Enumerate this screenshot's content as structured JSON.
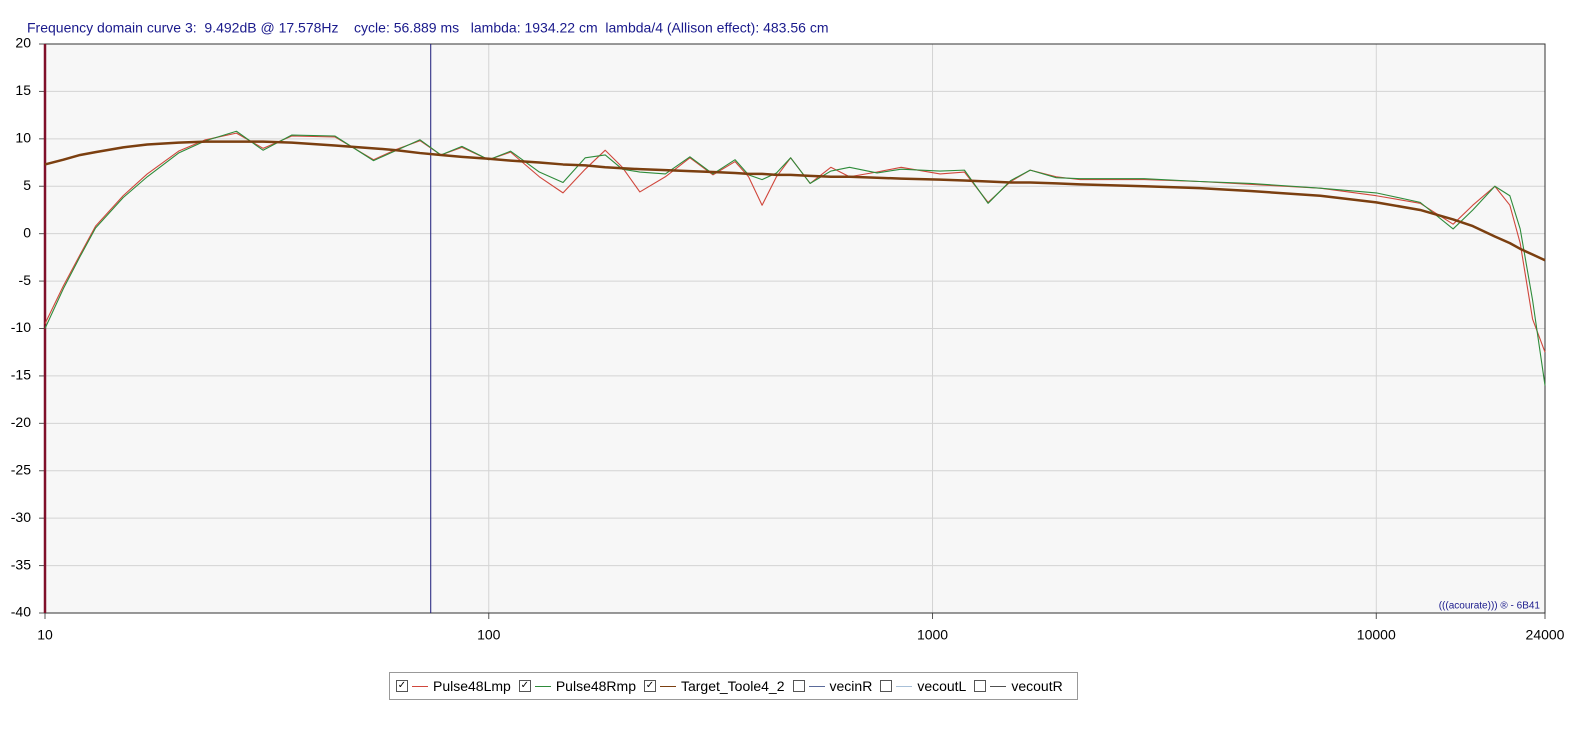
{
  "chart_data": {
    "type": "line",
    "header": "Frequency domain curve 3:  9.492dB @ 17.578Hz    cycle: 56.889 ms   lambda: 1934.22 cm  lambda/4 (Allison effect): 483.56 cm",
    "watermark": "(((acourate))) ® - 6B41",
    "xscale": "log",
    "xlim": [
      10,
      24000
    ],
    "xticks": [
      10,
      100,
      1000,
      10000,
      24000
    ],
    "ylim": [
      -40,
      20
    ],
    "yticks": [
      -40,
      -35,
      -30,
      -25,
      -20,
      -15,
      -10,
      -5,
      0,
      5,
      10,
      15,
      20
    ],
    "grid": true,
    "cursor_x": 74,
    "x": [
      10,
      11,
      12,
      13,
      15,
      17,
      20,
      23,
      27,
      31,
      36,
      45,
      55,
      62,
      70,
      78,
      87,
      100,
      112,
      130,
      147,
      165,
      183,
      200,
      219,
      250,
      284,
      320,
      359,
      385,
      413,
      445,
      479,
      530,
      590,
      650,
      750,
      850,
      1040,
      1180,
      1334,
      1500,
      1660,
      1900,
      2150,
      3000,
      4000,
      5200,
      7480,
      10000,
      12560,
      14900,
      16500,
      18500,
      20000,
      21100,
      22500,
      24000
    ],
    "series": [
      {
        "name": "Pulse48Lmp",
        "color": "#d0473c",
        "checked": true,
        "values": [
          -9.5,
          -5.5,
          -2.2,
          0.8,
          4.0,
          6.3,
          8.7,
          9.9,
          10.6,
          9.0,
          10.3,
          10.2,
          7.8,
          8.9,
          9.8,
          8.3,
          9.1,
          7.8,
          8.6,
          6.0,
          4.3,
          6.8,
          8.8,
          7.0,
          4.4,
          6.0,
          8.0,
          6.2,
          7.6,
          6.0,
          3.0,
          6.0,
          8.0,
          5.3,
          7.0,
          6.0,
          6.5,
          7.0,
          6.3,
          6.5,
          3.3,
          5.5,
          6.7,
          6.0,
          5.7,
          5.7,
          5.5,
          5.2,
          4.8,
          4.0,
          3.2,
          1.0,
          3.0,
          5.0,
          3.0,
          -1.0,
          -9.0,
          -12.5
        ]
      },
      {
        "name": "Pulse48Rmp",
        "color": "#2e8b3a",
        "checked": true,
        "values": [
          -10,
          -5.8,
          -2.4,
          0.6,
          3.8,
          6.0,
          8.5,
          9.8,
          10.8,
          8.8,
          10.4,
          10.3,
          7.7,
          8.8,
          9.9,
          8.3,
          9.2,
          7.8,
          8.7,
          6.5,
          5.4,
          8.0,
          8.3,
          6.8,
          6.5,
          6.3,
          8.1,
          6.3,
          7.8,
          6.2,
          5.7,
          6.4,
          8.0,
          5.3,
          6.6,
          7.0,
          6.4,
          6.8,
          6.6,
          6.7,
          3.2,
          5.6,
          6.7,
          5.9,
          5.8,
          5.8,
          5.5,
          5.3,
          4.8,
          4.3,
          3.3,
          0.5,
          2.5,
          5.0,
          4.0,
          0.5,
          -7.0,
          -16
        ]
      },
      {
        "name": "Target_Toole4_2",
        "color": "#7b3f10",
        "checked": true,
        "values": [
          7.3,
          7.8,
          8.3,
          8.6,
          9.1,
          9.4,
          9.6,
          9.7,
          9.7,
          9.7,
          9.6,
          9.3,
          9.0,
          8.8,
          8.5,
          8.3,
          8.1,
          7.9,
          7.7,
          7.5,
          7.3,
          7.2,
          7.0,
          6.9,
          6.8,
          6.7,
          6.6,
          6.5,
          6.4,
          6.3,
          6.3,
          6.2,
          6.2,
          6.1,
          6.0,
          6.0,
          5.9,
          5.8,
          5.7,
          5.6,
          5.5,
          5.4,
          5.4,
          5.3,
          5.2,
          5.0,
          4.8,
          4.5,
          4.0,
          3.3,
          2.5,
          1.5,
          0.8,
          -0.3,
          -1.0,
          -1.6,
          -2.2,
          -2.8
        ]
      }
    ],
    "legend_only": [
      {
        "name": "vecinR",
        "color": "#5a6a9a",
        "checked": false
      },
      {
        "name": "vecoutL",
        "color": "#a8c0d8",
        "checked": false
      },
      {
        "name": "vecoutR",
        "color": "#505050",
        "checked": false
      }
    ]
  }
}
